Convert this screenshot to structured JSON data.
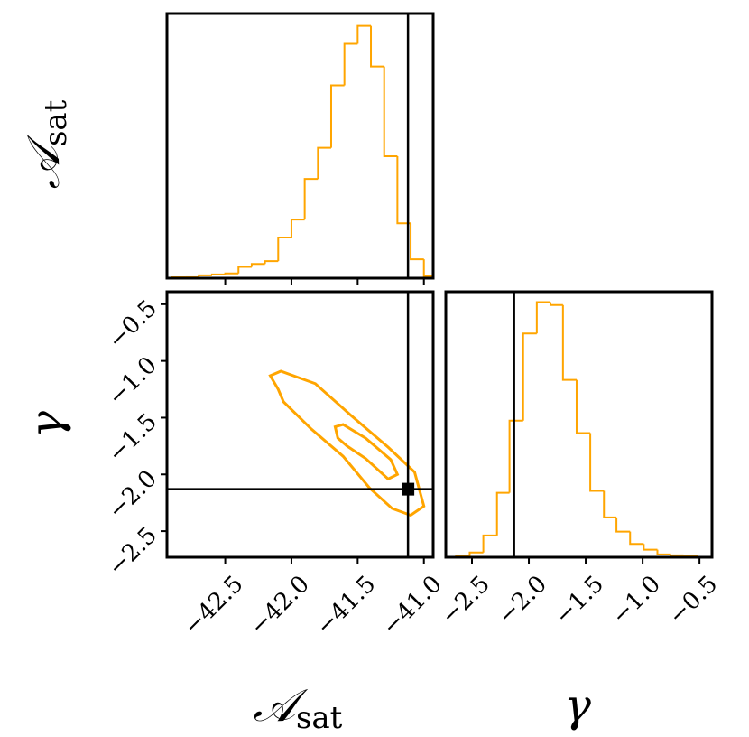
{
  "chart_data": [
    {
      "type": "histogram",
      "y_label": "𝒜",
      "y_label_sub": "sat",
      "bins": [
        -42.9,
        -42.8,
        -42.7,
        -42.6,
        -42.5,
        -42.4,
        -42.3,
        -42.2,
        -42.1,
        -42.0,
        -41.9,
        -41.8,
        -41.7,
        -41.6,
        -41.5,
        -41.4,
        -41.3,
        -41.2,
        -41.1,
        -41.0,
        -40.9
      ],
      "values": [
        1,
        1,
        3,
        4,
        5,
        12,
        15,
        18,
        43,
        62,
        105,
        138,
        204,
        248,
        267,
        224,
        129,
        58,
        20,
        2
      ],
      "color": "#ffa500",
      "xlim": [
        -42.94,
        -40.93
      ],
      "ylim": [
        0,
        280
      ],
      "xticks": [
        -42.5,
        -42.0,
        -41.5,
        -41.0
      ],
      "xtick_labels": false,
      "truth": -41.12
    },
    {
      "type": "contour",
      "x_label": "𝒜",
      "x_label_sub": "sat",
      "y_label": "γ",
      "color": "#ffa500",
      "series": [
        {
          "x": [
            -42.16,
            -42.08,
            -41.82,
            -41.55,
            -41.27,
            -41.07,
            -41.0,
            -41.1,
            -41.24,
            -41.41,
            -41.61,
            -41.85,
            -42.06,
            -42.1
          ],
          "y": [
            -1.13,
            -1.09,
            -1.2,
            -1.48,
            -1.76,
            -1.98,
            -2.28,
            -2.36,
            -2.3,
            -2.12,
            -1.84,
            -1.6,
            -1.36,
            -1.25
          ]
        },
        {
          "x": [
            -41.67,
            -41.61,
            -41.44,
            -41.25,
            -41.2,
            -41.27,
            -41.44,
            -41.58,
            -41.65
          ],
          "y": [
            -1.58,
            -1.56,
            -1.68,
            -1.87,
            -2.0,
            -2.04,
            -1.86,
            -1.75,
            -1.68
          ]
        }
      ],
      "xlim": [
        -42.94,
        -40.93
      ],
      "ylim": [
        -2.73,
        -0.39
      ],
      "xticks": [
        {
          "value": -42.5,
          "label": "−42.5"
        },
        {
          "value": -42.0,
          "label": "−42.0"
        },
        {
          "value": -41.5,
          "label": "−41.5"
        },
        {
          "value": -41.0,
          "label": "−41.0"
        }
      ],
      "yticks": [
        {
          "value": -0.5,
          "label": "−0.5"
        },
        {
          "value": -1.0,
          "label": "−1.0"
        },
        {
          "value": -1.5,
          "label": "−1.5"
        },
        {
          "value": -2.0,
          "label": "−2.0"
        },
        {
          "value": -2.5,
          "label": "−2.5"
        }
      ],
      "truth": {
        "x": -41.12,
        "y": -2.13
      }
    },
    {
      "type": "histogram",
      "x_label": "γ",
      "bins": [
        -2.64,
        -2.52,
        -2.4,
        -2.28,
        -2.17,
        -2.05,
        -1.93,
        -1.81,
        -1.7,
        -1.58,
        -1.46,
        -1.34,
        -1.23,
        -1.11,
        -0.99,
        -0.87,
        -0.75,
        -0.64,
        -0.52
      ],
      "values": [
        1,
        5,
        23,
        68,
        144,
        236,
        269,
        266,
        187,
        131,
        70,
        42,
        27,
        14,
        8,
        3,
        2,
        1
      ],
      "color": "#ffa500",
      "xlim": [
        -2.73,
        -0.39
      ],
      "ylim": [
        0,
        280
      ],
      "xticks": [
        {
          "value": -2.5,
          "label": "−2.5"
        },
        {
          "value": -2.0,
          "label": "−2.0"
        },
        {
          "value": -1.5,
          "label": "−1.5"
        },
        {
          "value": -1.0,
          "label": "−1.0"
        },
        {
          "value": -0.5,
          "label": "−0.5"
        }
      ],
      "truth": -2.13
    }
  ]
}
